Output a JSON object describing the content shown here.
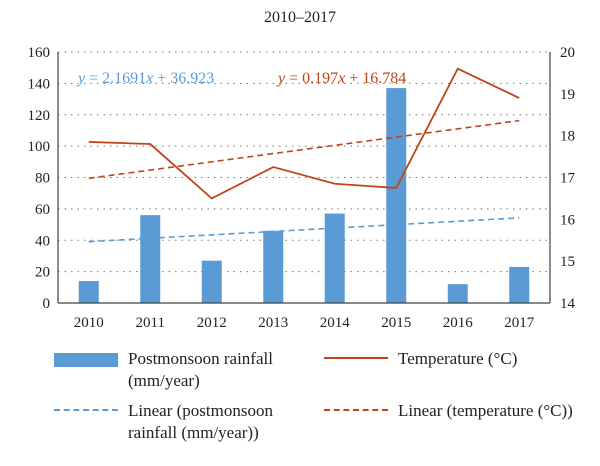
{
  "chart_data": {
    "type": "bar+line",
    "title": "2010–2017",
    "categories": [
      "2010",
      "2011",
      "2012",
      "2013",
      "2014",
      "2015",
      "2016",
      "2017"
    ],
    "y_left": {
      "min": 0,
      "max": 160,
      "ticks": [
        "0",
        "20",
        "40",
        "60",
        "80",
        "100",
        "120",
        "140",
        "160"
      ]
    },
    "y_right": {
      "min": 14,
      "max": 20,
      "ticks": [
        "14",
        "15",
        "16",
        "17",
        "18",
        "19",
        "20"
      ]
    },
    "grid": "dotted horizontal",
    "series": [
      {
        "name": "Postmonsoon rainfall (mm/year)",
        "kind": "bar",
        "axis": "left",
        "color": "#5b9bd5",
        "values": [
          14,
          56,
          27,
          46,
          57,
          137,
          12,
          23
        ]
      },
      {
        "name": "Temperature (°C)",
        "kind": "line",
        "axis": "right",
        "color": "#c0441a",
        "values": [
          17.85,
          17.8,
          16.5,
          17.25,
          16.85,
          16.75,
          19.6,
          18.9
        ]
      },
      {
        "name": "Linear (postmonsoon rainfall (mm/year))",
        "kind": "trend",
        "axis": "left",
        "color": "#5b9bd5",
        "slope": 2.1691,
        "intercept": 36.923
      },
      {
        "name": "Linear (temperature (°C))",
        "kind": "trend",
        "axis": "right",
        "color": "#c0441a",
        "slope": 0.197,
        "intercept": 16.784
      }
    ],
    "annotations": [
      {
        "text_y": "y",
        "text_eq": " = 2.1691",
        "text_x": "x",
        "text_rest": " + 36.923",
        "color": "#5b9bd5"
      },
      {
        "text_y": "y",
        "text_eq": " = 0.197",
        "text_x": "x",
        "text_rest": " + 16.784",
        "color": "#c0441a"
      }
    ],
    "legend": {
      "placement": "bottom",
      "items": [
        {
          "line1": "Postmonsoon rainfall",
          "line2": "(mm/year)"
        },
        {
          "line1": "Temperature (°C)",
          "line2": ""
        },
        {
          "line1": "Linear (postmonsoon",
          "line2": "rainfall (mm/year))"
        },
        {
          "line1": "Linear (temperature (°C))",
          "line2": ""
        }
      ]
    }
  }
}
